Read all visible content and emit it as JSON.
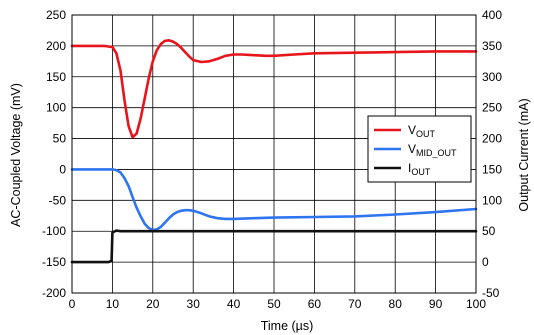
{
  "chart_data": {
    "type": "line",
    "title": "",
    "xlabel": "Time (µs)",
    "ylabel_left": "AC-Coupled Voltage (mV)",
    "ylabel_right": "Output Current (mA)",
    "xlim": [
      0,
      100
    ],
    "ylim_left": [
      -200,
      250
    ],
    "ylim_right": [
      -50,
      400
    ],
    "x_ticks": [
      "0",
      "10",
      "20",
      "30",
      "40",
      "50",
      "60",
      "70",
      "80",
      "90",
      "100"
    ],
    "y_left_ticks": [
      "-200",
      "-150",
      "-100",
      "-50",
      "0",
      "50",
      "100",
      "150",
      "200",
      "250"
    ],
    "y_right_ticks": [
      "-50",
      "0",
      "50",
      "100",
      "150",
      "200",
      "250",
      "300",
      "350",
      "400"
    ],
    "grid": true,
    "legend_position": "right",
    "series": [
      {
        "name": "VOUT",
        "legend_main": "V",
        "legend_sub": "OUT",
        "axis": "left",
        "color": "#e8141b",
        "x": [
          0,
          4,
          8,
          10,
          11,
          12,
          13,
          14,
          15,
          16,
          17,
          18,
          19,
          20,
          21,
          22,
          23,
          24,
          25,
          26,
          27,
          28,
          29,
          30,
          32,
          34,
          36,
          38,
          40,
          42,
          45,
          48,
          50,
          55,
          60,
          70,
          80,
          90,
          100
        ],
        "y": [
          200,
          200,
          200,
          198,
          188,
          160,
          112,
          70,
          52,
          58,
          83,
          115,
          148,
          175,
          193,
          203,
          208,
          209,
          207,
          203,
          197,
          190,
          183,
          177,
          174,
          175,
          179,
          184,
          186,
          186,
          185,
          184,
          184,
          186,
          188,
          189,
          190,
          191,
          191
        ]
      },
      {
        "name": "VMID_OUT",
        "legend_main": "V",
        "legend_sub": "MID_OUT",
        "axis": "left",
        "color": "#2f74f0",
        "x": [
          0,
          4,
          8,
          10,
          11,
          12,
          13,
          14,
          15,
          16,
          17,
          18,
          19,
          20,
          21,
          22,
          23,
          24,
          25,
          26,
          27,
          28,
          29,
          30,
          32,
          34,
          36,
          38,
          40,
          45,
          50,
          60,
          70,
          80,
          90,
          100
        ],
        "y": [
          0,
          0,
          0,
          0,
          -1,
          -5,
          -14,
          -27,
          -45,
          -62,
          -76,
          -88,
          -95,
          -98,
          -97,
          -93,
          -86,
          -79,
          -73,
          -69,
          -67,
          -66,
          -66,
          -67,
          -71,
          -76,
          -79,
          -80,
          -80,
          -79,
          -78,
          -77,
          -76,
          -73,
          -69,
          -64
        ]
      },
      {
        "name": "IOUT",
        "legend_main": "I",
        "legend_sub": "OUT",
        "axis": "right",
        "color": "#111111",
        "x": [
          0,
          9,
          9.8,
          10,
          11,
          12,
          15,
          20,
          30,
          40,
          50,
          60,
          70,
          80,
          90,
          100
        ],
        "y": [
          0,
          0,
          2,
          48,
          51,
          50,
          50,
          50,
          50,
          50,
          50,
          50,
          50,
          50,
          50,
          50
        ]
      }
    ]
  }
}
